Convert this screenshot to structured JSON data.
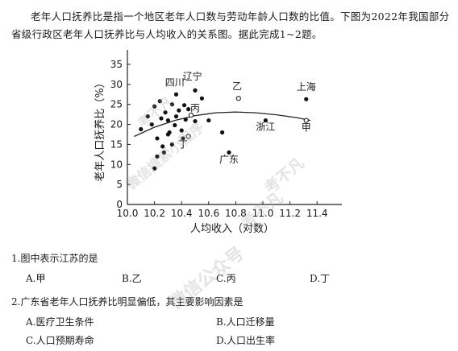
{
  "intro": "老年人口抚养比是指一个地区老年人口数与劳动年龄人口数的比值。下图为2022年我国部分省级行政区老年人口抚养比与人均收入的关系图。据此完成1~2题。",
  "chart_data": {
    "type": "scatter",
    "xlabel": "人均收入（对数）",
    "ylabel": "老年人口抚养比（%）",
    "xlim": [
      10.0,
      11.5
    ],
    "ylim": [
      0,
      37
    ],
    "x_ticks": [
      "10.0",
      "10.2",
      "10.4",
      "10.6",
      "10.8",
      "11.0",
      "11.2",
      "11.4"
    ],
    "y_ticks": [
      "0",
      "5",
      "10",
      "15",
      "20",
      "25",
      "30",
      "35"
    ],
    "points": [
      {
        "x": 10.1,
        "y": 18.8
      },
      {
        "x": 10.15,
        "y": 22.0
      },
      {
        "x": 10.18,
        "y": 20.0
      },
      {
        "x": 10.2,
        "y": 24.5
      },
      {
        "x": 10.22,
        "y": 16.5
      },
      {
        "x": 10.22,
        "y": 12.0
      },
      {
        "x": 10.25,
        "y": 21.5
      },
      {
        "x": 10.24,
        "y": 25.8
      },
      {
        "x": 10.26,
        "y": 14.5
      },
      {
        "x": 10.3,
        "y": 17.5
      },
      {
        "x": 10.3,
        "y": 21.0
      },
      {
        "x": 10.28,
        "y": 23.0
      },
      {
        "x": 10.33,
        "y": 15.0
      },
      {
        "x": 10.33,
        "y": 25.0
      },
      {
        "x": 10.35,
        "y": 19.8
      },
      {
        "x": 10.36,
        "y": 22.0
      },
      {
        "x": 10.38,
        "y": 23.5
      },
      {
        "x": 10.4,
        "y": 18.5
      },
      {
        "x": 10.42,
        "y": 24.8
      },
      {
        "x": 10.43,
        "y": 21.2
      },
      {
        "x": 10.45,
        "y": 23.8
      },
      {
        "x": 10.5,
        "y": 20.8
      },
      {
        "x": 10.2,
        "y": 9.0
      },
      {
        "x": 10.27,
        "y": 13.0
      },
      {
        "x": 10.31,
        "y": 18.0
      },
      {
        "x": 10.41,
        "y": 16.5
      },
      {
        "x": 10.36,
        "y": 27.5
      },
      {
        "x": 10.5,
        "y": 28.5
      },
      {
        "x": 10.55,
        "y": 26.5
      },
      {
        "x": 10.6,
        "y": 21.0
      },
      {
        "x": 10.7,
        "y": 18.0
      },
      {
        "x": 10.75,
        "y": 13.0
      },
      {
        "x": 11.02,
        "y": 21.0
      },
      {
        "x": 11.32,
        "y": 26.3
      }
    ],
    "hollow_points": [
      {
        "x": 10.45,
        "y": 17.0
      },
      {
        "x": 10.47,
        "y": 22.3
      },
      {
        "x": 10.82,
        "y": 26.5
      },
      {
        "x": 11.32,
        "y": 21.0
      }
    ],
    "trend_curve": {
      "x": [
        10.05,
        10.2,
        10.35,
        10.5,
        10.65,
        10.8,
        10.95,
        11.1,
        11.25,
        11.35
      ],
      "y": [
        17.0,
        19.3,
        21.0,
        22.2,
        22.9,
        23.1,
        22.9,
        22.4,
        21.7,
        21.0
      ]
    },
    "labels": [
      {
        "text": "四川",
        "x": 10.35,
        "y": 29.7
      },
      {
        "text": "辽宁",
        "x": 10.48,
        "y": 31.2
      },
      {
        "text": "丙",
        "x": 10.5,
        "y": 23.2
      },
      {
        "text": "丁",
        "x": 10.41,
        "y": 14.2
      },
      {
        "text": "乙",
        "x": 10.81,
        "y": 28.8
      },
      {
        "text": "上海",
        "x": 11.32,
        "y": 28.6
      },
      {
        "text": "甲",
        "x": 11.32,
        "y": 18.4
      },
      {
        "text": "浙江",
        "x": 11.02,
        "y": 18.6
      },
      {
        "text": "广东",
        "x": 10.75,
        "y": 10.5
      }
    ]
  },
  "questions": [
    {
      "number": "1.",
      "text": "图中表示江苏的是",
      "options": [
        {
          "letter": "A.",
          "text": "甲"
        },
        {
          "letter": "B.",
          "text": "乙"
        },
        {
          "letter": "C.",
          "text": "丙"
        },
        {
          "letter": "D.",
          "text": "丁"
        }
      ]
    },
    {
      "number": "2.",
      "text": "广东省老年人口抚养比明显偏低，其主要影响因素是",
      "options": [
        {
          "letter": "A.",
          "text": "医疗卫生条件"
        },
        {
          "letter": "B.",
          "text": "人口迁移量"
        },
        {
          "letter": "C.",
          "text": "人口预期寿命"
        },
        {
          "letter": "D.",
          "text": "人口出生率"
        }
      ]
    }
  ],
  "watermarks": [
    "考不凡",
    "微信搜索小程序",
    "考不凡",
    "微信公众号",
    "考不凡"
  ]
}
